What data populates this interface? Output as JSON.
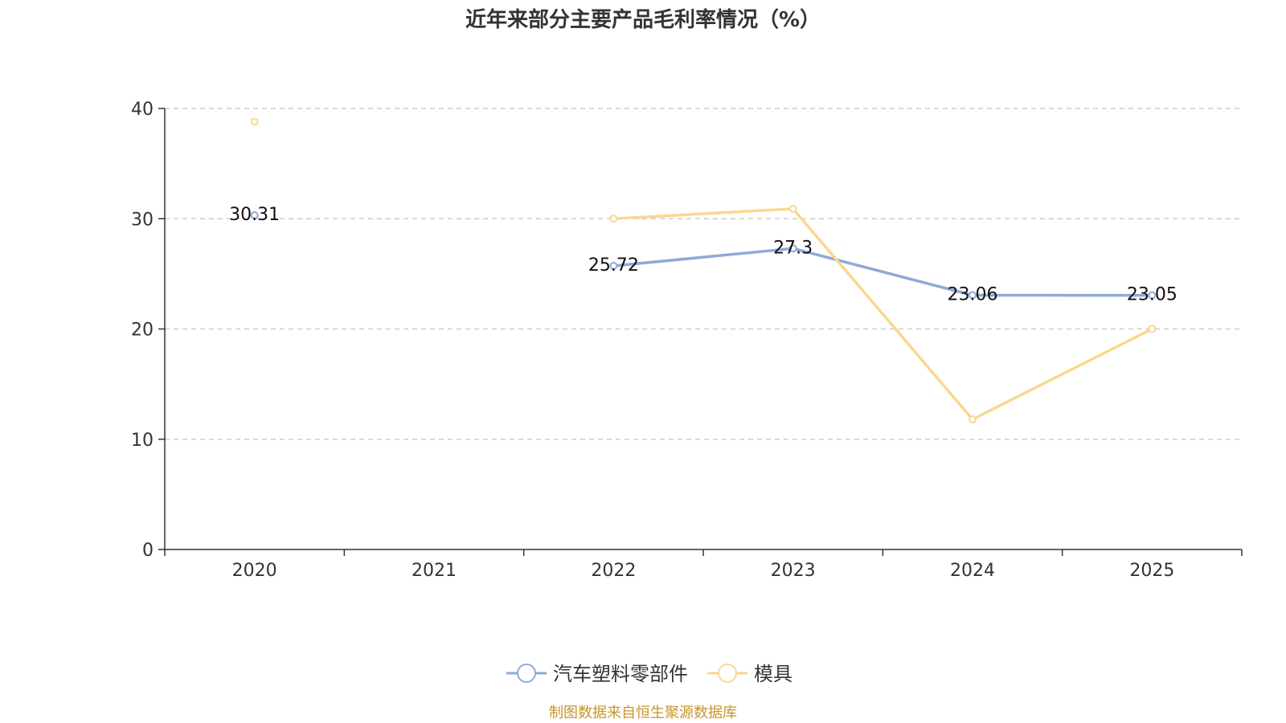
{
  "chart_data": {
    "type": "line",
    "title": "近年来部分主要产品毛利率情况（%）",
    "categories": [
      "2020",
      "2021",
      "2022",
      "2023",
      "2024",
      "2025"
    ],
    "ylim": [
      0,
      40
    ],
    "yticks": [
      0,
      10,
      20,
      30,
      40
    ],
    "grid": true,
    "legend_position": "bottom-center",
    "series": [
      {
        "name": "汽车塑料零部件",
        "color": "#8eaad8",
        "values": [
          30.31,
          null,
          25.72,
          27.3,
          23.06,
          23.05
        ],
        "labels": [
          "30.31",
          null,
          "25.72",
          "27.3",
          "23.06",
          "23.05"
        ]
      },
      {
        "name": "模具",
        "color": "#fad78f",
        "values": [
          38.8,
          null,
          30.0,
          30.9,
          11.8,
          20.0
        ],
        "labels": null
      }
    ],
    "source": "制图数据来自恒生聚源数据库"
  }
}
